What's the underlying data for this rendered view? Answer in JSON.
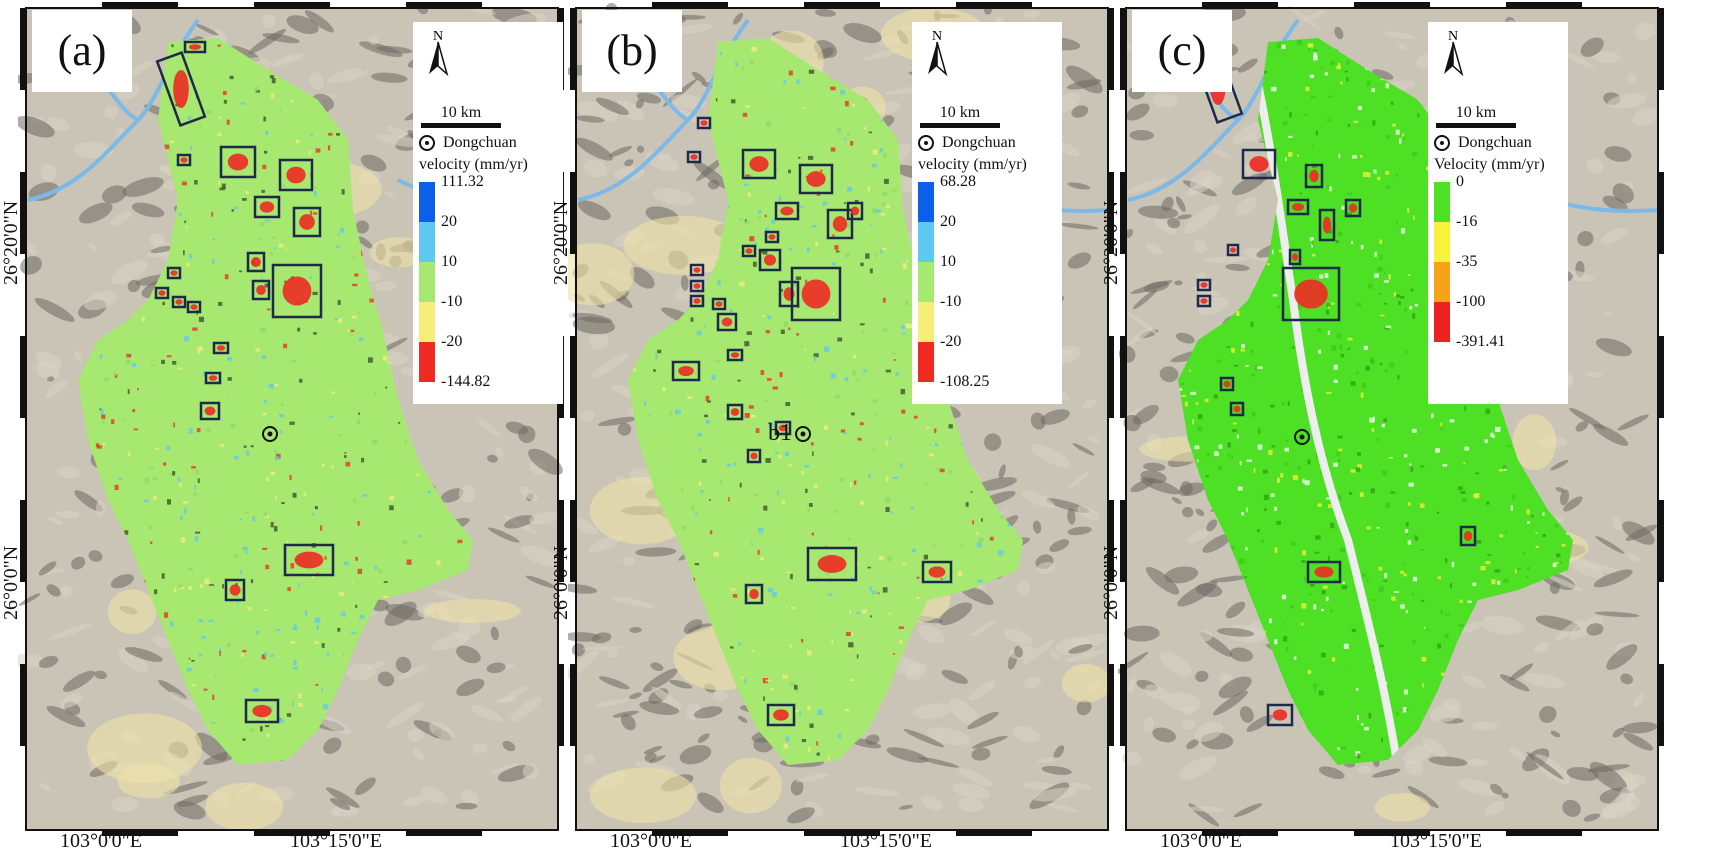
{
  "panels": [
    {
      "label": "(a)",
      "north_label": "N",
      "scale_label": "10 km",
      "town_label": "Dongchuan",
      "legend_title": "velocity (mm/yr)",
      "legend_breaks": [
        "111.32",
        "20",
        "10",
        "-10",
        "-20",
        "-144.82"
      ],
      "legend_colors": [
        "#0b5fe8",
        "#5ec8f2",
        "#a6e870",
        "#f5ef7a",
        "#ee2a23"
      ],
      "extra_label": "",
      "x_ticks": [
        "103°0'0\"E",
        "103°15'0\"E"
      ],
      "y_ticks": [
        "26°20'0\"N",
        "26°0'0\"N"
      ]
    },
    {
      "label": "(b)",
      "north_label": "N",
      "scale_label": "10 km",
      "town_label": "Dongchuan",
      "legend_title": "velocity (mm/yr)",
      "legend_breaks": [
        "68.28",
        "20",
        "10",
        "-10",
        "-20",
        "-108.25"
      ],
      "legend_colors": [
        "#0b5fe8",
        "#5ec8f2",
        "#a6e870",
        "#f5ef7a",
        "#ee2a23"
      ],
      "extra_label": "b1",
      "x_ticks": [
        "103°0'0\"E",
        "103°15'0\"E"
      ],
      "y_ticks": [
        "26°20'0\"N",
        "26°0'0\"N"
      ]
    },
    {
      "label": "(c)",
      "north_label": "N",
      "scale_label": "10 km",
      "town_label": "Dongchuan",
      "legend_title": "Velocity (mm/yr)",
      "legend_breaks": [
        "0",
        "-16",
        "-35",
        "-100",
        "-391.41"
      ],
      "legend_colors": [
        "#4de025",
        "#f8f23a",
        "#f7a317",
        "#ee2020"
      ],
      "extra_label": "",
      "x_ticks": [
        "103°0'0\"E",
        "103°15'0\"E"
      ],
      "y_ticks": [
        "26°20'0\"N",
        "26°0'0\"N"
      ]
    }
  ],
  "colors": {
    "frame": "#111111",
    "box_outline": "#1e2a4a",
    "hillshade_dark": "#6e6a62",
    "hillshade_light": "#d8d4c4",
    "river": "#7cb9e8",
    "panel_a_fill": "#a6e870",
    "panel_b_fill": "#a6e870",
    "panel_c_fill": "#4de025"
  }
}
